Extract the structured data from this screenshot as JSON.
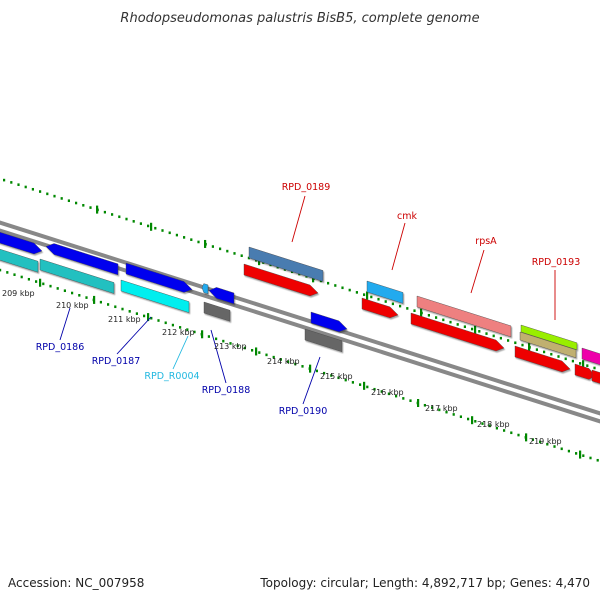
{
  "title": "Rhodopseudomonas palustris BisB5, complete genome",
  "footer": {
    "accession": "Accession: NC_007958",
    "summary": "Topology: circular; Length: 4,892,717 bp; Genes: 4,470"
  },
  "scale_labels": [
    "209 kbp",
    "210 kbp",
    "211 kbp",
    "212 kbp",
    "213 kbp",
    "214 kbp",
    "215 kbp",
    "216 kbp",
    "217 kbp",
    "218 kbp",
    "219 kbp"
  ],
  "gene_labels": {
    "rpd_0186": "RPD_0186",
    "rpd_0187": "RPD_0187",
    "rpd_r0004": "RPD_R0004",
    "rpd_0188": "RPD_0188",
    "rpd_0189": "RPD_0189",
    "rpd_0190": "RPD_0190",
    "cmk": "cmk",
    "rpsA": "rpsA",
    "rpd_0193": "RPD_0193"
  },
  "colors": {
    "background": "#ffffff",
    "label_blue": "#0000aa",
    "label_red": "#cc0000",
    "label_cyan": "#22b8e0",
    "gene_blue": "#0000ee",
    "gene_cyan": "#00eeee",
    "gene_teal": "#20c0c0",
    "gene_red": "#ee0000",
    "gene_steelblue": "#4a7bb0",
    "gene_lightblue": "#22aaee",
    "gene_pink": "#ee8080",
    "gene_lime": "#99ee00",
    "gene_khaki": "#c0b070",
    "gene_gray": "#666666",
    "gene_magenta": "#ee00aa",
    "backbone": "#888888",
    "tick_green": "#008800"
  }
}
